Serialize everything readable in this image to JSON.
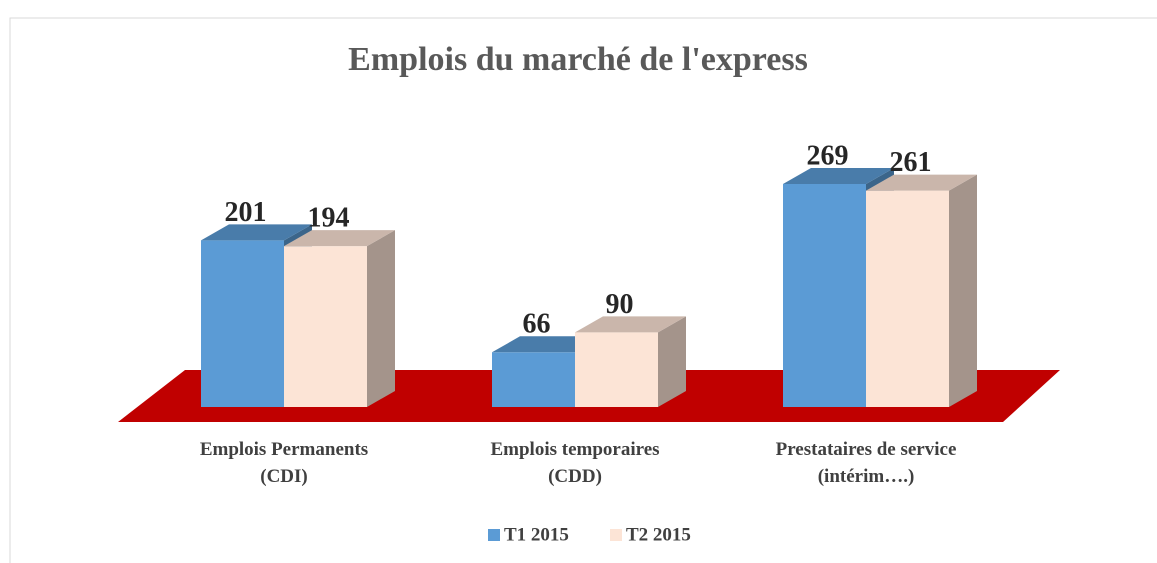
{
  "chart_data": {
    "type": "bar3d",
    "title": "Emplois du marché de l'express",
    "categories": [
      "Emplois Permanents\n(CDI)",
      "Emplois temporaires\n(CDD)",
      "Prestataires de service\n(intérim….)"
    ],
    "series": [
      {
        "name": "T1 2015",
        "color": "#5b9bd5",
        "values": [
          201,
          66,
          269
        ]
      },
      {
        "name": "T2 2015",
        "color": "#fce4d6",
        "values": [
          194,
          90,
          261
        ]
      }
    ],
    "floor_color": "#c00000",
    "legend": "bottom"
  }
}
